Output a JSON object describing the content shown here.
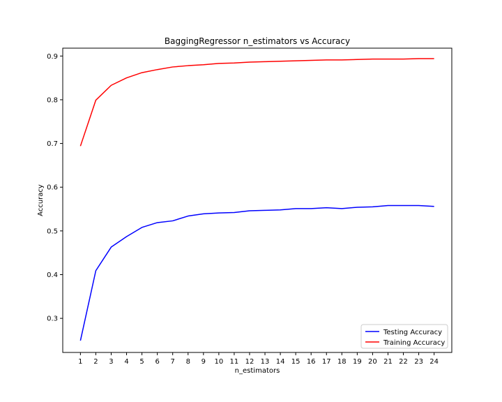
{
  "chart_data": {
    "type": "line",
    "title": "BaggingRegressor n_estimators vs Accuracy",
    "xlabel": "n_estimators",
    "ylabel": "Accuracy",
    "x": [
      1,
      2,
      3,
      4,
      5,
      6,
      7,
      8,
      9,
      10,
      11,
      12,
      13,
      14,
      15,
      16,
      17,
      18,
      19,
      20,
      21,
      22,
      23,
      24
    ],
    "xlim": [
      -0.15,
      25.15
    ],
    "ylim": [
      0.222,
      0.918
    ],
    "yticks": [
      0.3,
      0.4,
      0.5,
      0.6,
      0.7,
      0.8,
      0.9
    ],
    "grid": false,
    "legend_position": "lower-right",
    "series": [
      {
        "name": "Testing Accuracy",
        "color": "#0000ff",
        "values": [
          0.249,
          0.409,
          0.463,
          0.487,
          0.508,
          0.519,
          0.523,
          0.534,
          0.539,
          0.541,
          0.542,
          0.546,
          0.547,
          0.548,
          0.551,
          0.551,
          0.553,
          0.551,
          0.554,
          0.555,
          0.558,
          0.558,
          0.558,
          0.556
        ]
      },
      {
        "name": "Training Accuracy",
        "color": "#ff0000",
        "values": [
          0.694,
          0.799,
          0.833,
          0.85,
          0.862,
          0.869,
          0.875,
          0.878,
          0.88,
          0.883,
          0.884,
          0.886,
          0.887,
          0.888,
          0.889,
          0.89,
          0.891,
          0.891,
          0.892,
          0.893,
          0.893,
          0.893,
          0.894,
          0.894
        ]
      }
    ]
  }
}
